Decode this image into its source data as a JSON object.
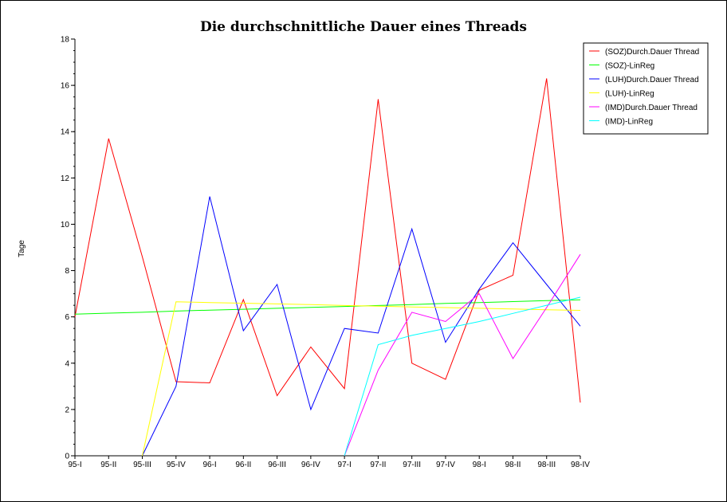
{
  "chart_data": {
    "type": "line",
    "title": "Die durchschnittliche Dauer eines Threads",
    "xlabel": "",
    "ylabel": "Tage",
    "ylim": [
      0,
      18
    ],
    "yticks": [
      0,
      2,
      4,
      6,
      8,
      10,
      12,
      14,
      16,
      18
    ],
    "grid": false,
    "legend_position": "top-right",
    "categories": [
      "95-I",
      "95-II",
      "95-III",
      "95-IV",
      "96-I",
      "96-II",
      "96-III",
      "96-IV",
      "97-I",
      "97-II",
      "97-III",
      "97-IV",
      "98-I",
      "98-II",
      "98-III",
      "98-IV"
    ],
    "series": [
      {
        "name": "(SOZ)Durch.Dauer Thread",
        "color": "#ff0000",
        "values": [
          6.0,
          13.7,
          8.6,
          3.2,
          3.15,
          6.75,
          2.6,
          4.7,
          2.9,
          15.4,
          4.0,
          3.3,
          7.15,
          7.8,
          16.3,
          2.3
        ]
      },
      {
        "name": "(SOZ)-LinReg",
        "color": "#00ff00",
        "values": [
          6.12,
          6.16,
          6.2,
          6.25,
          6.29,
          6.33,
          6.37,
          6.41,
          6.45,
          6.49,
          6.53,
          6.58,
          6.62,
          6.66,
          6.7,
          6.74
        ]
      },
      {
        "name": "(LUH)Durch.Dauer Thread",
        "color": "#0000ff",
        "values": [
          null,
          null,
          0.0,
          3.0,
          11.2,
          5.4,
          7.4,
          2.0,
          5.5,
          5.3,
          9.8,
          4.9,
          7.2,
          9.2,
          7.4,
          5.6
        ]
      },
      {
        "name": "(LUH)-LinReg",
        "color": "#ffff00",
        "values": [
          null,
          null,
          0.0,
          6.65,
          6.62,
          6.59,
          6.56,
          6.53,
          6.49,
          6.46,
          6.43,
          6.4,
          6.37,
          6.34,
          6.31,
          6.28
        ]
      },
      {
        "name": "(IMD)Durch.Dauer Thread",
        "color": "#ff00ff",
        "values": [
          null,
          null,
          null,
          null,
          null,
          null,
          null,
          null,
          0.0,
          3.7,
          6.2,
          5.8,
          7.0,
          4.2,
          6.4,
          8.7
        ]
      },
      {
        "name": "(IMD)-LinReg",
        "color": "#00ffff",
        "values": [
          null,
          null,
          null,
          null,
          null,
          null,
          null,
          null,
          0.0,
          4.8,
          5.2,
          5.5,
          5.8,
          6.15,
          6.5,
          6.85
        ]
      }
    ]
  }
}
